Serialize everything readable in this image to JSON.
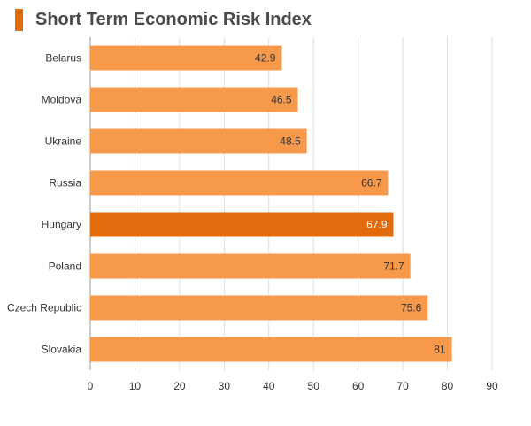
{
  "chart_data": {
    "type": "bar",
    "orientation": "horizontal",
    "title": "Short Term Economic Risk Index",
    "xlabel": "",
    "ylabel": "",
    "categories": [
      "Belarus",
      "Moldova",
      "Ukraine",
      "Russia",
      "Hungary",
      "Poland",
      "Czech Republic",
      "Slovakia"
    ],
    "values": [
      42.9,
      46.5,
      48.5,
      66.7,
      67.9,
      71.7,
      75.6,
      81
    ],
    "value_labels": [
      "42.9",
      "46.5",
      "48.5",
      "66.7",
      "67.9",
      "71.7",
      "75.6",
      "81"
    ],
    "highlight": "Hungary",
    "xlim": [
      0,
      90
    ],
    "xticks": [
      0,
      10,
      20,
      30,
      40,
      50,
      60,
      70,
      80,
      90
    ],
    "grid": "vertical",
    "legend": "none",
    "colors": {
      "bar": "#f7994b",
      "bar_highlight": "#e06c0d",
      "title_accent": "#e06c0d",
      "grid": "#dddddd",
      "axis": "#999999",
      "text": "#333333"
    }
  }
}
